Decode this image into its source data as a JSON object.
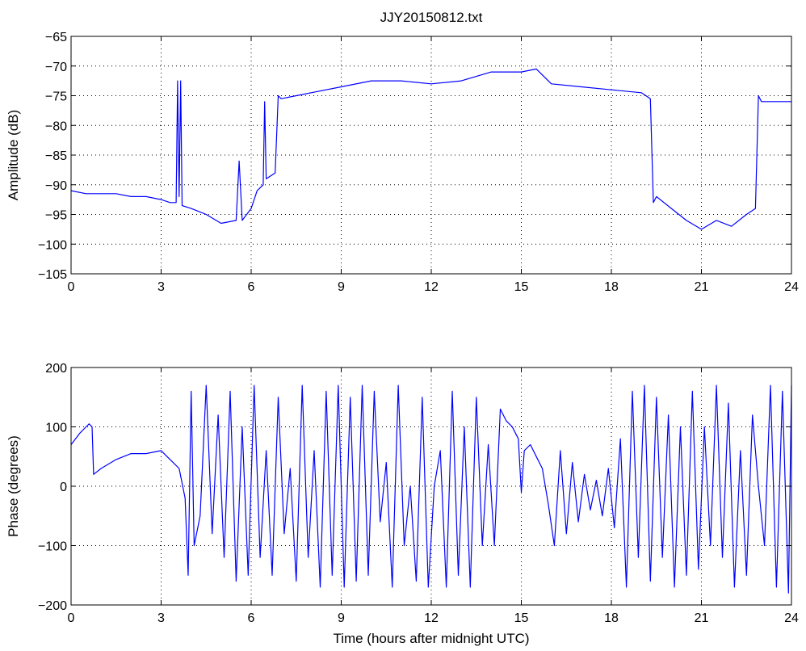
{
  "title": "JJY20150812.txt",
  "colors": {
    "series": "#0000ff",
    "axes": "#000000",
    "grid": "#000000",
    "background": "#ffffff"
  },
  "chart_data": [
    {
      "type": "line",
      "title": "JJY20150812.txt",
      "xlabel": "",
      "ylabel": "Amplitude (dB)",
      "xlim": [
        0,
        24
      ],
      "ylim": [
        -105,
        -65
      ],
      "xticks": [
        0,
        3,
        6,
        9,
        12,
        15,
        18,
        21,
        24
      ],
      "yticks": [
        -105,
        -100,
        -95,
        -90,
        -85,
        -80,
        -75,
        -70,
        -65
      ],
      "xtick_labels": [
        "0",
        "3",
        "6",
        "9",
        "12",
        "15",
        "18",
        "21",
        "24"
      ],
      "ytick_labels": [
        "−105",
        "−100",
        "−95",
        "−90",
        "−85",
        "−80",
        "−75",
        "−70",
        "−65"
      ],
      "grid": true,
      "series": [
        {
          "x": [
            0,
            0.5,
            1,
            1.5,
            2,
            2.5,
            3,
            3.3,
            3.5,
            3.55,
            3.6,
            3.65,
            3.7,
            4,
            4.5,
            5,
            5.5,
            5.6,
            5.7,
            6,
            6.2,
            6.4,
            6.45,
            6.5,
            6.8,
            6.9,
            7,
            7.5,
            8,
            9,
            10,
            11,
            12,
            13,
            14,
            15,
            15.5,
            16,
            17,
            18,
            19,
            19.3,
            19.4,
            19.5,
            20,
            20.5,
            21,
            21.5,
            22,
            22.5,
            22.8,
            22.9,
            23,
            24
          ],
          "y": [
            -91,
            -91.5,
            -91.5,
            -91.5,
            -92,
            -92,
            -92.5,
            -93,
            -93,
            -72.5,
            -92,
            -72.5,
            -93.5,
            -94,
            -95,
            -96.5,
            -96,
            -86,
            -96,
            -94,
            -91,
            -90,
            -76,
            -89,
            -88,
            -75,
            -75.5,
            -75,
            -74.5,
            -73.5,
            -72.5,
            -72.5,
            -73,
            -72.5,
            -71,
            -71,
            -70.5,
            -73,
            -73.5,
            -74,
            -74.5,
            -75.5,
            -93,
            -92,
            -94,
            -96,
            -97.5,
            -96,
            -97,
            -95,
            -94,
            -75,
            -76,
            -76
          ]
        }
      ]
    },
    {
      "type": "line",
      "title": "",
      "xlabel": "Time (hours after midnight UTC)",
      "ylabel": "Phase (degrees)",
      "xlim": [
        0,
        24
      ],
      "ylim": [
        -200,
        200
      ],
      "xticks": [
        0,
        3,
        6,
        9,
        12,
        15,
        18,
        21,
        24
      ],
      "yticks": [
        -200,
        -100,
        0,
        100,
        200
      ],
      "xtick_labels": [
        "0",
        "3",
        "6",
        "9",
        "12",
        "15",
        "18",
        "21",
        "24"
      ],
      "ytick_labels": [
        "−200",
        "−100",
        "0",
        "100",
        "200"
      ],
      "grid": true,
      "series": [
        {
          "x": [
            0,
            0.3,
            0.5,
            0.6,
            0.7,
            0.75,
            1,
            1.5,
            2,
            2.5,
            3,
            3.3,
            3.6,
            3.8,
            3.9,
            4.0,
            4.1,
            4.3,
            4.5,
            4.7,
            4.9,
            5.1,
            5.3,
            5.5,
            5.7,
            5.9,
            6.1,
            6.3,
            6.5,
            6.7,
            6.9,
            7.1,
            7.3,
            7.5,
            7.7,
            7.9,
            8.1,
            8.3,
            8.5,
            8.7,
            8.9,
            9.1,
            9.3,
            9.5,
            9.7,
            9.9,
            10.1,
            10.3,
            10.5,
            10.7,
            10.9,
            11.1,
            11.3,
            11.5,
            11.7,
            11.9,
            12.1,
            12.3,
            12.5,
            12.7,
            12.9,
            13.1,
            13.3,
            13.5,
            13.7,
            13.9,
            14.1,
            14.3,
            14.5,
            14.7,
            14.9,
            15.0,
            15.1,
            15.3,
            15.5,
            15.7,
            15.9,
            16.1,
            16.3,
            16.5,
            16.7,
            16.9,
            17.1,
            17.3,
            17.5,
            17.7,
            17.9,
            18.1,
            18.3,
            18.5,
            18.7,
            18.9,
            19.1,
            19.3,
            19.5,
            19.7,
            19.9,
            20.1,
            20.3,
            20.5,
            20.7,
            20.9,
            21.1,
            21.3,
            21.5,
            21.7,
            21.9,
            22.1,
            22.3,
            22.5,
            22.7,
            22.9,
            23.1,
            23.3,
            23.5,
            23.7,
            23.9,
            24
          ],
          "y": [
            70,
            90,
            100,
            105,
            100,
            20,
            30,
            45,
            55,
            55,
            60,
            45,
            30,
            -20,
            -150,
            160,
            -100,
            -50,
            170,
            -80,
            120,
            -120,
            160,
            -160,
            100,
            -150,
            170,
            -120,
            60,
            -150,
            150,
            -80,
            30,
            -160,
            170,
            -120,
            60,
            -170,
            160,
            -150,
            170,
            -170,
            150,
            -160,
            170,
            -150,
            160,
            -60,
            40,
            -170,
            170,
            -100,
            0,
            -160,
            150,
            -170,
            0,
            60,
            -170,
            160,
            -150,
            100,
            -170,
            150,
            -100,
            70,
            -100,
            130,
            110,
            100,
            80,
            -10,
            60,
            70,
            50,
            30,
            -30,
            -100,
            60,
            -80,
            40,
            -60,
            20,
            -40,
            10,
            -50,
            30,
            -70,
            80,
            -170,
            160,
            -120,
            170,
            -160,
            150,
            -120,
            120,
            -170,
            100,
            -150,
            160,
            -140,
            100,
            -100,
            170,
            -120,
            140,
            -170,
            60,
            -150,
            120,
            0,
            -100,
            170,
            -170,
            160,
            -180,
            170
          ]
        }
      ]
    }
  ]
}
